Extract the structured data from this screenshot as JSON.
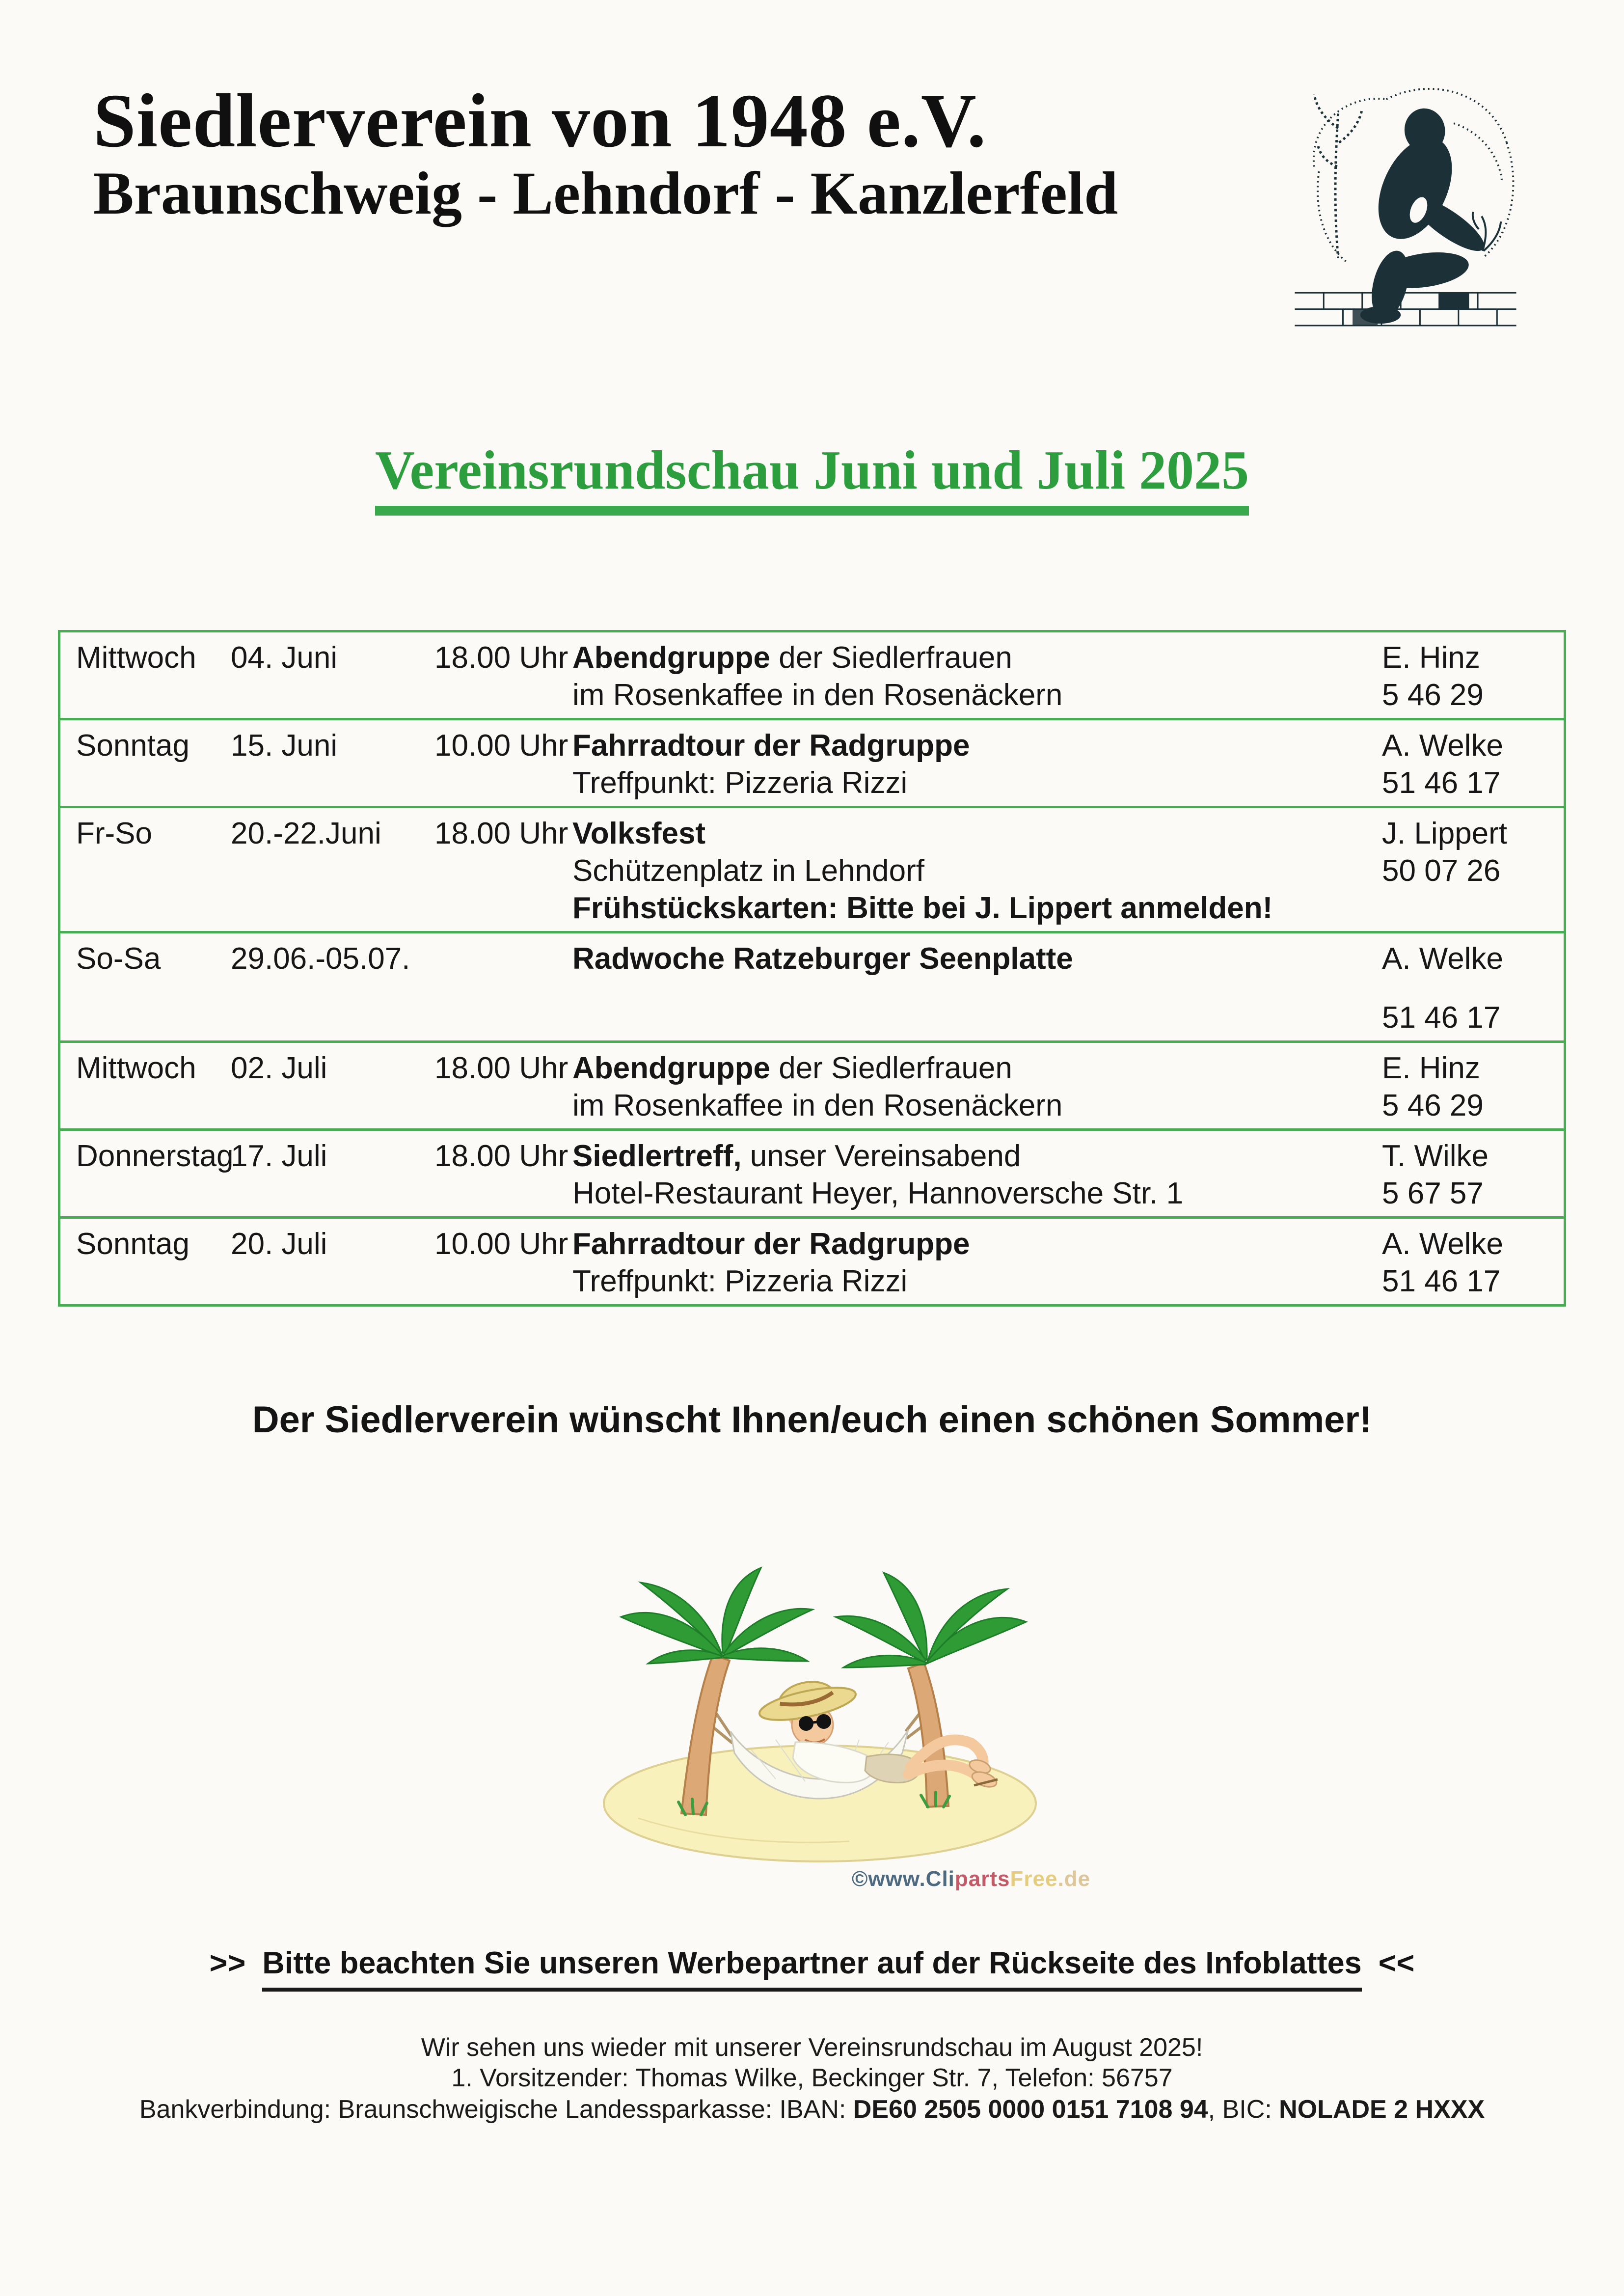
{
  "header": {
    "title": "Siedlerverein von 1948 e.V.",
    "subtitle": "Braunschweig - Lehndorf - Kanzlerfeld",
    "logo_icon": "kneeling-gardener-etching"
  },
  "newsletter": {
    "title": "Vereinsrundschau Juni und Juli 2025",
    "accent_color": "#2d9e3d",
    "table_border_color": "#47ac52"
  },
  "events": {
    "rows": [
      {
        "day": "Mittwoch",
        "date": "04. Juni",
        "time": "18.00 Uhr",
        "desc": [
          [
            {
              "t": "Abendgruppe",
              "b": true
            },
            {
              "t": " der Siedlerfrauen"
            }
          ],
          [
            {
              "t": "im Rosenkaffee in den Rosenäckern"
            }
          ]
        ],
        "contact": {
          "name": "E. Hinz",
          "phone": "5 46 29",
          "gap": false
        }
      },
      {
        "day": "Sonntag",
        "date": "15. Juni",
        "time": "10.00 Uhr",
        "desc": [
          [
            {
              "t": "Fahrradtour der Radgruppe",
              "b": true
            }
          ],
          [
            {
              "t": "Treffpunkt: Pizzeria Rizzi"
            }
          ]
        ],
        "contact": {
          "name": "A. Welke",
          "phone": "51 46 17",
          "gap": false
        }
      },
      {
        "day": "Fr-So",
        "date": "20.-22.Juni",
        "time": "18.00 Uhr",
        "desc": [
          [
            {
              "t": "Volksfest",
              "b": true
            }
          ],
          [
            {
              "t": "Schützenplatz in Lehndorf"
            }
          ],
          [
            {
              "t": "Frühstückskarten: Bitte bei J. Lippert anmelden!",
              "b": true
            }
          ]
        ],
        "contact": {
          "name": "J. Lippert",
          "phone": "50 07 26",
          "gap": false
        }
      },
      {
        "day": "So-Sa",
        "date": "29.06.-05.07.",
        "time": "",
        "desc": [
          [
            {
              "t": "Radwoche Ratzeburger Seenplatte",
              "b": true
            }
          ]
        ],
        "contact": {
          "name": "A. Welke",
          "phone": "51 46 17",
          "gap": true
        }
      },
      {
        "day": "Mittwoch",
        "date": "02. Juli",
        "time": "18.00 Uhr",
        "desc": [
          [
            {
              "t": "Abendgruppe",
              "b": true
            },
            {
              "t": " der Siedlerfrauen"
            }
          ],
          [
            {
              "t": "im Rosenkaffee in den Rosenäckern"
            }
          ]
        ],
        "contact": {
          "name": "E. Hinz",
          "phone": "5 46 29",
          "gap": false
        }
      },
      {
        "day": "Donnerstag",
        "date": "17. Juli",
        "time": "18.00 Uhr",
        "desc": [
          [
            {
              "t": "Siedlertreff,",
              "b": true
            },
            {
              "t": " unser Vereinsabend"
            }
          ],
          [
            {
              "t": "Hotel-Restaurant Heyer, Hannoversche Str. 1"
            }
          ]
        ],
        "contact": {
          "name": "T. Wilke",
          "phone": "5 67 57",
          "gap": false
        }
      },
      {
        "day": "Sonntag",
        "date": "20. Juli",
        "time": "10.00 Uhr",
        "desc": [
          [
            {
              "t": "Fahrradtour der Radgruppe",
              "b": true
            }
          ],
          [
            {
              "t": "Treffpunkt: Pizzeria Rizzi"
            }
          ]
        ],
        "contact": {
          "name": "A. Welke",
          "phone": "51 46 17",
          "gap": false
        }
      }
    ]
  },
  "message": "Der Siedlerverein wünscht Ihnen/euch einen schönen Sommer!",
  "cartoon": {
    "icon": "man-in-hammock-between-palm-trees",
    "watermark": [
      {
        "t": "©www.Cli",
        "c": "#4e6a80"
      },
      {
        "t": "parts",
        "c": "#c25a68"
      },
      {
        "t": "Free",
        "c": "#e5cd7d"
      },
      {
        "t": ".de",
        "c": "#ddc69a"
      }
    ]
  },
  "notice": {
    "left_arrows": ">>",
    "text": "Bitte beachten Sie unseren Werbepartner auf der Rückseite des Infoblattes",
    "right_arrows": "<<"
  },
  "footer": {
    "line1": "Wir sehen uns wieder mit unserer Vereinsrundschau im August 2025!",
    "line2": "1. Vorsitzender: Thomas Wilke, Beckinger Str. 7, Telefon: 56757",
    "line3": [
      {
        "t": "Bankverbindung:  Braunschweigische Landessparkasse: IBAN: "
      },
      {
        "t": "DE60 2505 0000 0151 7108 94",
        "b": true
      },
      {
        "t": ", BIC: "
      },
      {
        "t": "NOLADE 2 HXXX",
        "b": true
      }
    ]
  }
}
